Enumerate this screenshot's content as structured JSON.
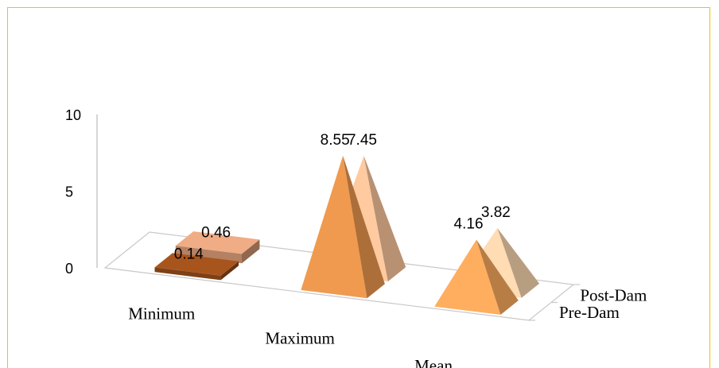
{
  "chart_data": {
    "type": "pyramid-3d",
    "title": "",
    "categories": [
      "Minimum",
      "Maximum",
      "Mean"
    ],
    "series": [
      {
        "name": "Pre-Dam",
        "values": [
          0.14,
          8.55,
          4.16
        ]
      },
      {
        "name": "Post-Dam",
        "values": [
          0.46,
          7.45,
          3.82
        ]
      }
    ],
    "ylim": [
      0,
      10
    ],
    "yticks": [
      0,
      5,
      10
    ],
    "data_labels": true,
    "legend": "none",
    "colors": {
      "Pre-Dam": [
        "#a8551d",
        "#f09a4f",
        "#ffae5f"
      ],
      "Post-Dam": [
        "#f0ac84",
        "#ffcaa0",
        "#ffdcb3"
      ]
    },
    "frame_color": "#f2c200"
  }
}
